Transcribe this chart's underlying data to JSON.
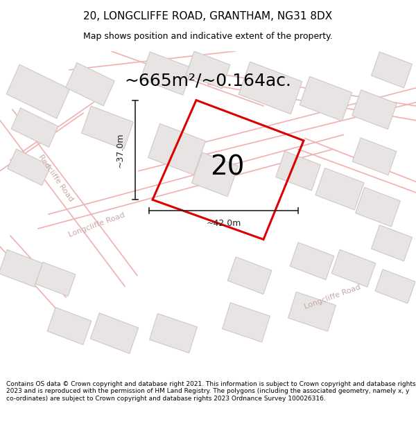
{
  "title_line1": "20, LONGCLIFFE ROAD, GRANTHAM, NG31 8DX",
  "title_line2": "Map shows position and indicative extent of the property.",
  "area_text": "~665m²/~0.164ac.",
  "number_label": "20",
  "dim_horizontal": "~42.0m",
  "dim_vertical": "~37.0m",
  "road_label_longcliffe1": "Longcliffe Road",
  "road_label_longcliffe2": "Longcliffe Road",
  "road_label_redcliffe": "Redcliffe Road",
  "footer_text": "Contains OS data © Crown copyright and database right 2021. This information is subject to Crown copyright and database rights 2023 and is reproduced with the permission of HM Land Registry. The polygons (including the associated geometry, namely x, y co-ordinates) are subject to Crown copyright and database rights 2023 Ordnance Survey 100026316.",
  "bg_color": "#ffffff",
  "map_bg": "#ffffff",
  "highlight_color": "#dd0000",
  "road_stroke": "#f0b0b0",
  "building_fill": "#e8e4e4",
  "building_stroke": "#d0c8c8",
  "dim_color": "#222222",
  "text_color": "#000000",
  "road_label_color": "#c8a8a8",
  "title_fontsize": 11,
  "subtitle_fontsize": 9,
  "area_fontsize": 18,
  "number_fontsize": 28,
  "dim_fontsize": 9,
  "road_fontsize": 8,
  "footer_fontsize": 6.5
}
